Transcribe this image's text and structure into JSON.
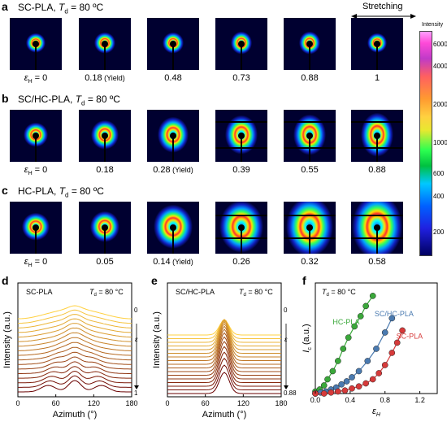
{
  "panels": {
    "a": {
      "letter": "a",
      "title_pre": "SC-PLA, ",
      "title_sym": "T",
      "title_sub": "d",
      "title_post": " = 80 ºC",
      "captions": [
        "ε_H = 0",
        "0.18",
        "0.48",
        "0.73",
        "0.88",
        "1"
      ],
      "yield_index": 1,
      "sizes": [
        0.18,
        0.2,
        0.2,
        0.21,
        0.21,
        0.18
      ]
    },
    "b": {
      "letter": "b",
      "title_pre": "SC/HC-PLA, ",
      "title_sym": "T",
      "title_sub": "d",
      "title_post": " = 80 ºC",
      "captions": [
        "ε_H = 0",
        "0.18",
        "0.28",
        "0.39",
        "0.55",
        "0.88"
      ],
      "yield_index": 2,
      "sizes": [
        0.24,
        0.26,
        0.3,
        0.32,
        0.32,
        0.32
      ]
    },
    "c": {
      "letter": "c",
      "title_pre": "HC-PLA, ",
      "title_sym": "T",
      "title_sub": "d",
      "title_post": " = 80 ºC",
      "captions": [
        "ε_H = 0",
        "0.05",
        "0.14",
        "0.26",
        "0.32",
        "0.58"
      ],
      "yield_index": 2,
      "sizes": [
        0.26,
        0.28,
        0.38,
        0.42,
        0.46,
        0.48
      ]
    }
  },
  "labels": {
    "yield": "(Yield)",
    "stretching": "Stretching",
    "intensity": "Intensity",
    "d": "d",
    "e": "e",
    "f": "f"
  },
  "colorbar": {
    "ticks": [
      "6000",
      "4000",
      "2000",
      "1000",
      "600",
      "400",
      "200"
    ]
  },
  "colors": {
    "sc": "#d63a3a",
    "schc": "#4a7ab0",
    "hc": "#3aa83a"
  },
  "chart_data": [
    {
      "id": "d",
      "type": "line",
      "title": "SC-PLA",
      "annotation": "T_d = 80 °C",
      "xlabel": "Azimuth (°)",
      "ylabel": "Intensity (a.u.)",
      "xlim": [
        0,
        180
      ],
      "xticks": [
        0,
        60,
        120,
        180
      ],
      "series_count": 17,
      "right_label_top": "0",
      "right_label_bottom": "1",
      "right_axis_label": "ε_H"
    },
    {
      "id": "e",
      "type": "line",
      "title": "SC/HC-PLA",
      "annotation": "T_d = 80 °C",
      "xlabel": "Azimuth (°)",
      "ylabel": "Intensity (a.u.)",
      "xlim": [
        0,
        180
      ],
      "xticks": [
        0,
        60,
        120,
        180
      ],
      "series_count": 17,
      "right_label_top": "0",
      "right_label_bottom": "0.88",
      "right_axis_label": "ε_H"
    },
    {
      "id": "f",
      "type": "scatter",
      "annotation": "T_d = 80 °C",
      "xlabel": "ε_H",
      "ylabel": "I_c (a.u.)",
      "xlim": [
        0,
        1.4
      ],
      "xticks": [
        0.0,
        0.4,
        0.8,
        1.2
      ],
      "series": [
        {
          "name": "HC-PLA",
          "color": "#3aa83a",
          "x": [
            0.0,
            0.05,
            0.1,
            0.14,
            0.2,
            0.26,
            0.32,
            0.38,
            0.45,
            0.52,
            0.58,
            0.66
          ],
          "y": [
            0.02,
            0.04,
            0.08,
            0.14,
            0.22,
            0.32,
            0.44,
            0.55,
            0.66,
            0.76,
            0.86,
            0.96
          ]
        },
        {
          "name": "SC/HC-PLA",
          "color": "#4a7ab0",
          "x": [
            0.0,
            0.06,
            0.12,
            0.18,
            0.24,
            0.3,
            0.36,
            0.42,
            0.5,
            0.6,
            0.7,
            0.8,
            0.88
          ],
          "y": [
            0.0,
            0.01,
            0.02,
            0.04,
            0.06,
            0.09,
            0.12,
            0.16,
            0.22,
            0.32,
            0.44,
            0.6,
            0.74
          ]
        },
        {
          "name": "SC-PLA",
          "color": "#d63a3a",
          "x": [
            0.0,
            0.1,
            0.18,
            0.26,
            0.34,
            0.42,
            0.5,
            0.58,
            0.66,
            0.73,
            0.8,
            0.88,
            0.94,
            1.0
          ],
          "y": [
            0.0,
            0.0,
            0.01,
            0.02,
            0.03,
            0.05,
            0.07,
            0.1,
            0.14,
            0.2,
            0.28,
            0.4,
            0.5,
            0.62
          ]
        }
      ]
    }
  ]
}
